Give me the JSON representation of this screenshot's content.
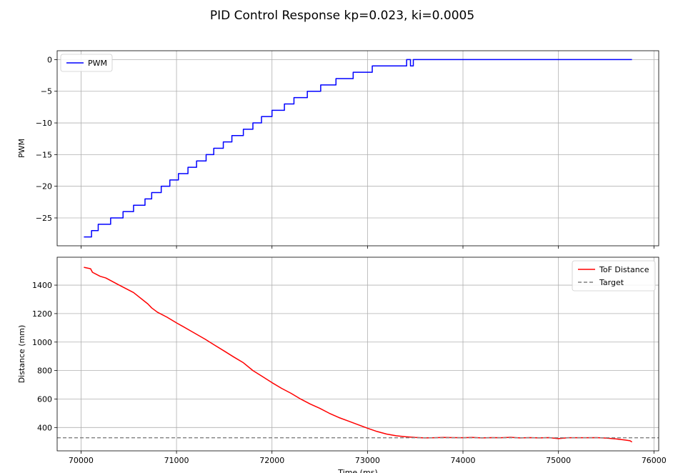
{
  "figure": {
    "title": "PID Control Response kp=0.023, ki=0.0005"
  },
  "chart_data": [
    {
      "type": "line",
      "ylabel": "PWM",
      "xlabel": "",
      "xlim": [
        69750,
        76050
      ],
      "ylim": [
        -29.4,
        1.4
      ],
      "x_ticks": [
        70000,
        71000,
        72000,
        73000,
        74000,
        75000,
        76000
      ],
      "y_ticks": [
        0,
        -5,
        -10,
        -15,
        -20,
        -25
      ],
      "y_tick_labels": [
        "0",
        "−5",
        "−10",
        "−15",
        "−20",
        "−25"
      ],
      "grid": true,
      "legend_position": "upper left",
      "colors": {
        "PWM": "#0000ff"
      },
      "series": [
        {
          "name": "PWM",
          "step": true,
          "points": [
            [
              70030,
              -28
            ],
            [
              70110,
              -28
            ],
            [
              70110,
              -27
            ],
            [
              70180,
              -27
            ],
            [
              70180,
              -26
            ],
            [
              70310,
              -26
            ],
            [
              70310,
              -25
            ],
            [
              70440,
              -25
            ],
            [
              70440,
              -24
            ],
            [
              70550,
              -24
            ],
            [
              70550,
              -23
            ],
            [
              70670,
              -23
            ],
            [
              70670,
              -22
            ],
            [
              70740,
              -22
            ],
            [
              70740,
              -21
            ],
            [
              70840,
              -21
            ],
            [
              70840,
              -20
            ],
            [
              70930,
              -20
            ],
            [
              70930,
              -19
            ],
            [
              71020,
              -19
            ],
            [
              71020,
              -18
            ],
            [
              71120,
              -18
            ],
            [
              71120,
              -17
            ],
            [
              71210,
              -17
            ],
            [
              71210,
              -16
            ],
            [
              71310,
              -16
            ],
            [
              71310,
              -15
            ],
            [
              71390,
              -15
            ],
            [
              71390,
              -14
            ],
            [
              71490,
              -14
            ],
            [
              71490,
              -13
            ],
            [
              71580,
              -13
            ],
            [
              71580,
              -12
            ],
            [
              71700,
              -12
            ],
            [
              71700,
              -11
            ],
            [
              71800,
              -11
            ],
            [
              71800,
              -10
            ],
            [
              71890,
              -10
            ],
            [
              71890,
              -9
            ],
            [
              72000,
              -9
            ],
            [
              72000,
              -8
            ],
            [
              72130,
              -8
            ],
            [
              72130,
              -7
            ],
            [
              72230,
              -7
            ],
            [
              72230,
              -6
            ],
            [
              72370,
              -6
            ],
            [
              72370,
              -5
            ],
            [
              72510,
              -5
            ],
            [
              72510,
              -4
            ],
            [
              72670,
              -4
            ],
            [
              72670,
              -3
            ],
            [
              72850,
              -3
            ],
            [
              72850,
              -2
            ],
            [
              73050,
              -2
            ],
            [
              73050,
              -1
            ],
            [
              73410,
              -1
            ],
            [
              73410,
              0
            ],
            [
              73450,
              0
            ],
            [
              73450,
              -1
            ],
            [
              73480,
              -1
            ],
            [
              73480,
              0
            ],
            [
              75770,
              0
            ]
          ]
        }
      ]
    },
    {
      "type": "line",
      "ylabel": "Distance (mm)",
      "xlabel": "Time (ms)",
      "xlim": [
        69750,
        76050
      ],
      "ylim": [
        236,
        1596
      ],
      "x_ticks": [
        70000,
        71000,
        72000,
        73000,
        74000,
        75000,
        76000
      ],
      "y_ticks": [
        400,
        600,
        800,
        1000,
        1200,
        1400
      ],
      "grid": true,
      "legend_position": "upper right",
      "colors": {
        "ToF Distance": "#ff0000",
        "Target": "#808080"
      },
      "series": [
        {
          "name": "ToF Distance",
          "points": [
            [
              70030,
              1525
            ],
            [
              70100,
              1515
            ],
            [
              70120,
              1490
            ],
            [
              70200,
              1462
            ],
            [
              70260,
              1450
            ],
            [
              70400,
              1400
            ],
            [
              70550,
              1348
            ],
            [
              70700,
              1268
            ],
            [
              70740,
              1240
            ],
            [
              70800,
              1210
            ],
            [
              70900,
              1175
            ],
            [
              71000,
              1135
            ],
            [
              71150,
              1078
            ],
            [
              71300,
              1020
            ],
            [
              71400,
              978
            ],
            [
              71500,
              937
            ],
            [
              71600,
              895
            ],
            [
              71700,
              855
            ],
            [
              71800,
              800
            ],
            [
              71900,
              758
            ],
            [
              72000,
              715
            ],
            [
              72100,
              675
            ],
            [
              72200,
              640
            ],
            [
              72300,
              600
            ],
            [
              72400,
              565
            ],
            [
              72500,
              535
            ],
            [
              72600,
              500
            ],
            [
              72700,
              470
            ],
            [
              72800,
              445
            ],
            [
              72900,
              420
            ],
            [
              73000,
              395
            ],
            [
              73100,
              372
            ],
            [
              73200,
              354
            ],
            [
              73300,
              342
            ],
            [
              73400,
              335
            ],
            [
              73500,
              330
            ],
            [
              73600,
              327
            ],
            [
              73700,
              328
            ],
            [
              73800,
              330
            ],
            [
              73900,
              329
            ],
            [
              74000,
              328
            ],
            [
              74100,
              330
            ],
            [
              74200,
              327
            ],
            [
              74300,
              329
            ],
            [
              74400,
              328
            ],
            [
              74500,
              331
            ],
            [
              74600,
              327
            ],
            [
              74700,
              329
            ],
            [
              74800,
              327
            ],
            [
              74900,
              329
            ],
            [
              75000,
              322
            ],
            [
              75100,
              328
            ],
            [
              75200,
              328
            ],
            [
              75300,
              328
            ],
            [
              75400,
              329
            ],
            [
              75500,
              326
            ],
            [
              75600,
              320
            ],
            [
              75700,
              312
            ],
            [
              75750,
              307
            ],
            [
              75770,
              298
            ]
          ]
        },
        {
          "name": "Target",
          "dashed": true,
          "value": 328
        }
      ]
    }
  ]
}
